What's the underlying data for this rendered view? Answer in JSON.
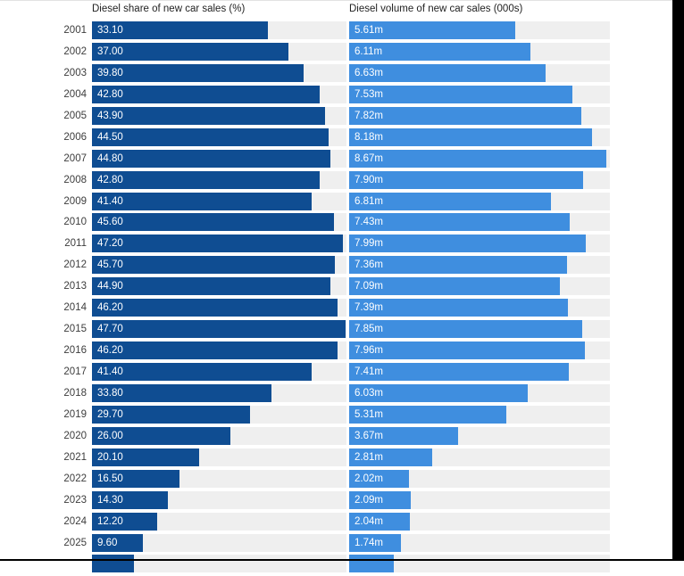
{
  "chart_data": {
    "type": "bar",
    "orientation": "horizontal",
    "grid": false,
    "legend": "none",
    "categories": [
      "2001",
      "2002",
      "2003",
      "2004",
      "2005",
      "2006",
      "2007",
      "2008",
      "2009",
      "2010",
      "2011",
      "2012",
      "2013",
      "2014",
      "2015",
      "2016",
      "2017",
      "2018",
      "2019",
      "2020",
      "2021",
      "2022",
      "2023",
      "2024",
      "2025"
    ],
    "track_color": "#efefef",
    "panels": [
      {
        "name": "share",
        "title": "Diesel share of new car sales (%)",
        "bar_color": "#0f4d92",
        "axis_max": 47.7,
        "values": [
          33.1,
          37.0,
          39.8,
          42.8,
          43.9,
          44.5,
          44.8,
          42.8,
          41.4,
          45.6,
          47.2,
          45.7,
          44.9,
          46.2,
          47.7,
          46.2,
          41.4,
          33.8,
          29.7,
          26.0,
          20.1,
          16.5,
          14.3,
          12.2,
          9.6
        ],
        "labels": [
          "33.10",
          "37.00",
          "39.80",
          "42.80",
          "43.90",
          "44.50",
          "44.80",
          "42.80",
          "41.40",
          "45.60",
          "47.20",
          "45.70",
          "44.90",
          "46.20",
          "47.70",
          "46.20",
          "41.40",
          "33.80",
          "29.70",
          "26.00",
          "20.10",
          "16.50",
          "14.30",
          "12.20",
          "9.60"
        ]
      },
      {
        "name": "volume",
        "title": "Diesel volume of new car sales (000s)",
        "bar_color": "#3f8edf",
        "axis_max": 8.67,
        "values": [
          5.61,
          6.11,
          6.63,
          7.53,
          7.82,
          8.18,
          8.67,
          7.9,
          6.81,
          7.43,
          7.99,
          7.36,
          7.09,
          7.39,
          7.85,
          7.96,
          7.41,
          6.03,
          5.31,
          3.67,
          2.81,
          2.02,
          2.09,
          2.04,
          1.74
        ],
        "labels": [
          "5.61m",
          "6.11m",
          "6.63m",
          "7.53m",
          "7.82m",
          "8.18m",
          "8.67m",
          "7.90m",
          "6.81m",
          "7.43m",
          "7.99m",
          "7.36m",
          "7.09m",
          "7.39m",
          "7.85m",
          "7.96m",
          "7.41m",
          "6.03m",
          "5.31m",
          "3.67m",
          "2.81m",
          "2.02m",
          "2.09m",
          "2.04m",
          "1.74m"
        ]
      }
    ],
    "partial_next_row": {
      "share_value": 7.9,
      "volume_value": 1.5
    }
  }
}
